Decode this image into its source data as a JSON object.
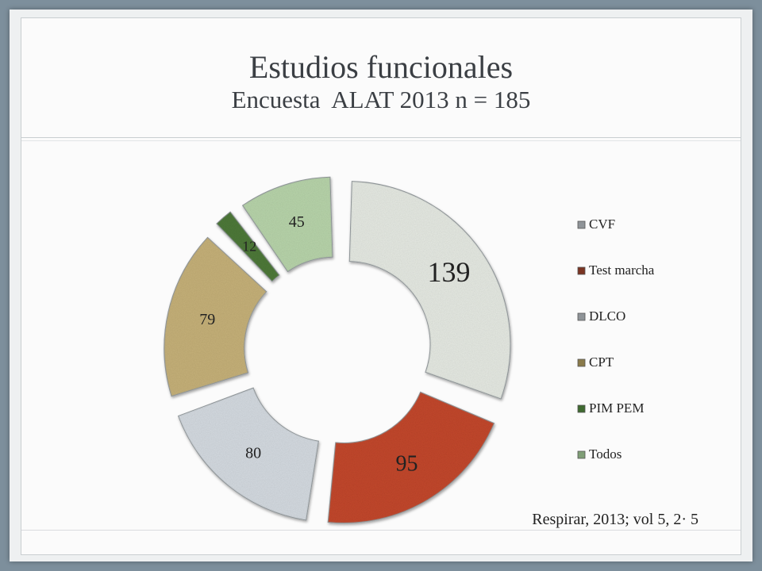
{
  "slide": {
    "title": "Estudios funcionales",
    "subtitle": "Encuesta  ALAT 2013 n = 185",
    "citation": "Respirar, 2013; vol 5, 2· 5"
  },
  "chart_data": {
    "type": "pie",
    "style": "doughnut-exploded",
    "categories": [
      "CVF",
      "Test marcha",
      "DLCO",
      "CPT",
      "PIM PEM",
      "Todos"
    ],
    "values": [
      139,
      95,
      80,
      79,
      12,
      45
    ],
    "colors": [
      "#e7ebe4",
      "#c44a2e",
      "#d6dce2",
      "#c7b27a",
      "#4f7a3b",
      "#b9d6ac"
    ],
    "title": "",
    "legend": {
      "position": "right"
    }
  }
}
